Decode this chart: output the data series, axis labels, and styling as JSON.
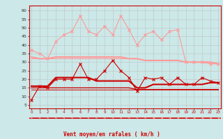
{
  "x": [
    0,
    1,
    2,
    3,
    4,
    5,
    6,
    7,
    8,
    9,
    10,
    11,
    12,
    13,
    14,
    15,
    16,
    17,
    18,
    19,
    20,
    21,
    22,
    23
  ],
  "line1": [
    37,
    35,
    32,
    42,
    46,
    48,
    57,
    48,
    46,
    51,
    46,
    57,
    49,
    40,
    46,
    48,
    43,
    48,
    49,
    30,
    30,
    30,
    29,
    29
  ],
  "line2": [
    33,
    32,
    32,
    33,
    33,
    33,
    33,
    33,
    33,
    33,
    33,
    33,
    32,
    32,
    31,
    31,
    31,
    31,
    31,
    30,
    30,
    30,
    30,
    29
  ],
  "line3": [
    32,
    32,
    32,
    32,
    32,
    32,
    32,
    32,
    32,
    32,
    32,
    32,
    32,
    32,
    31,
    31,
    31,
    31,
    31,
    30,
    30,
    30,
    30,
    29
  ],
  "line4": [
    8,
    16,
    15,
    20,
    20,
    20,
    29,
    20,
    20,
    25,
    31,
    25,
    21,
    13,
    21,
    20,
    21,
    17,
    21,
    17,
    17,
    21,
    19,
    18
  ],
  "line5": [
    16,
    16,
    16,
    21,
    21,
    21,
    21,
    21,
    19,
    19,
    19,
    19,
    19,
    15,
    15,
    17,
    17,
    17,
    17,
    17,
    17,
    17,
    18,
    18
  ],
  "line6": [
    15,
    15,
    15,
    15,
    15,
    15,
    15,
    15,
    15,
    15,
    15,
    15,
    15,
    14,
    14,
    14,
    14,
    14,
    14,
    14,
    14,
    14,
    14,
    14
  ],
  "line7": [
    14,
    14,
    14,
    14,
    14,
    14,
    14,
    14,
    14,
    14,
    14,
    14,
    14,
    14,
    14,
    14,
    14,
    14,
    14,
    14,
    14,
    14,
    14,
    14
  ],
  "line8": [
    14,
    14,
    14,
    14,
    14,
    14,
    14,
    14,
    14,
    14,
    14,
    14,
    14,
    14,
    14,
    14,
    14,
    14,
    14,
    14,
    14,
    14,
    14,
    14
  ],
  "bg_color": "#cce8e8",
  "grid_color": "#bbbbbb",
  "light_red": "#ff9999",
  "dark_red": "#cc0000",
  "xlabel": "Vent moyen/en rafales ( km/h )",
  "yticks": [
    5,
    10,
    15,
    20,
    25,
    30,
    35,
    40,
    45,
    50,
    55,
    60
  ],
  "xticks": [
    0,
    1,
    2,
    3,
    4,
    5,
    6,
    7,
    8,
    9,
    10,
    11,
    12,
    13,
    14,
    15,
    16,
    17,
    18,
    19,
    20,
    21,
    22,
    23
  ],
  "ylim": [
    3,
    63
  ],
  "xlim": [
    -0.3,
    23.3
  ]
}
